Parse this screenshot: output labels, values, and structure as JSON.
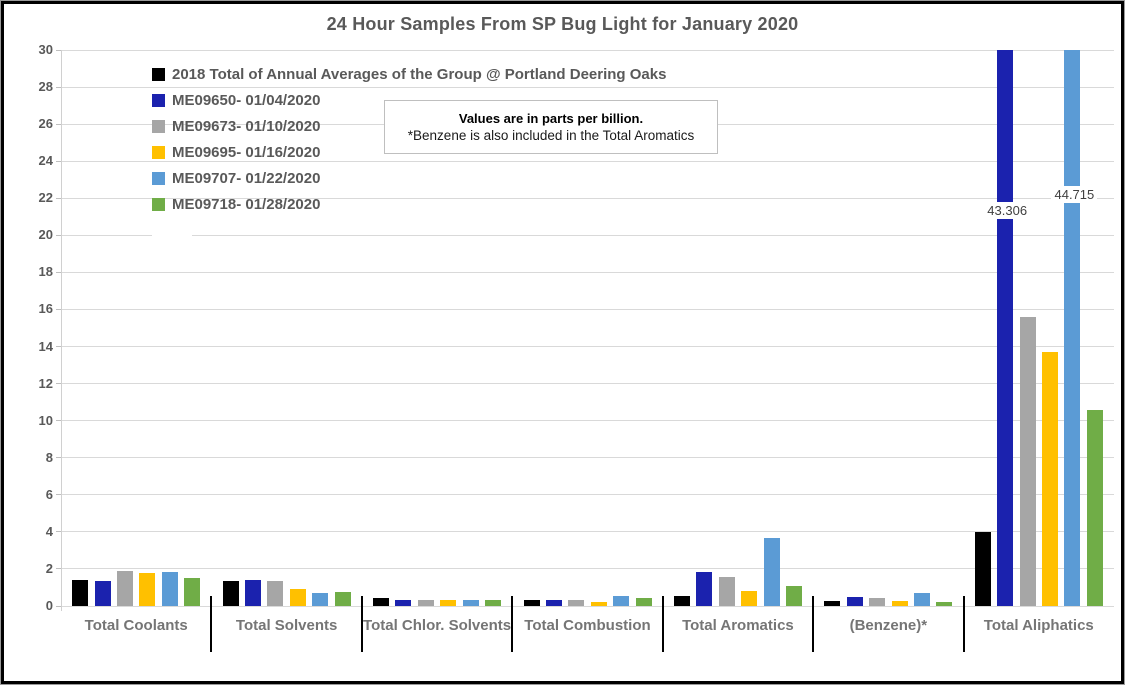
{
  "note": {
    "line1": "Values are in parts per billion.",
    "line2": "*Benzene is also included in the Total Aromatics"
  },
  "colors": {
    "gridline": "#d9d9d9",
    "axis": "#d0d0d0",
    "separator": "#000000",
    "title_text": "#595959",
    "tick_text": "#595959",
    "category_text": "#757575"
  },
  "chart_data": {
    "type": "bar",
    "title": "24 Hour Samples From SP Bug Light for January 2020",
    "ylabel": "",
    "xlabel": "",
    "ylim": [
      0,
      30
    ],
    "yticks": [
      0,
      2,
      4,
      6,
      8,
      10,
      12,
      14,
      16,
      18,
      20,
      22,
      24,
      26,
      28,
      30
    ],
    "grid": true,
    "legend_position": "top-left",
    "categories": [
      "Total Coolants",
      "Total Solvents",
      "Total Chlor. Solvents",
      "Total Combustion",
      "Total Aromatics",
      "(Benzene)*",
      "Total Aliphatics"
    ],
    "series": [
      {
        "name": "2018 Total of Annual Averages of the Group @ Portland Deering Oaks",
        "color": "#000000",
        "values": [
          1.4,
          1.35,
          0.45,
          0.3,
          0.55,
          0.25,
          4.0
        ]
      },
      {
        "name": "ME09650- 01/04/2020",
        "color": "#1b22ae",
        "values": [
          1.35,
          1.4,
          0.35,
          0.35,
          1.85,
          0.5,
          43.306
        ]
      },
      {
        "name": "ME09673- 01/10/2020",
        "color": "#a6a6a6",
        "values": [
          1.9,
          1.35,
          0.3,
          0.35,
          1.55,
          0.45,
          15.6
        ]
      },
      {
        "name": "ME09695- 01/16/2020",
        "color": "#ffc000",
        "values": [
          1.8,
          0.9,
          0.3,
          0.2,
          0.8,
          0.25,
          13.7
        ]
      },
      {
        "name": "ME09707- 01/22/2020",
        "color": "#5b9bd5",
        "values": [
          1.85,
          0.7,
          0.35,
          0.55,
          3.65,
          0.7,
          44.715
        ]
      },
      {
        "name": "ME09718- 01/28/2020",
        "color": "#70ad47",
        "values": [
          1.5,
          0.75,
          0.3,
          0.45,
          1.1,
          0.2,
          10.6
        ]
      }
    ],
    "data_labels": [
      {
        "series_index": 1,
        "category_index": 6,
        "text": "43.306"
      },
      {
        "series_index": 4,
        "category_index": 6,
        "text": "44.715"
      }
    ]
  }
}
